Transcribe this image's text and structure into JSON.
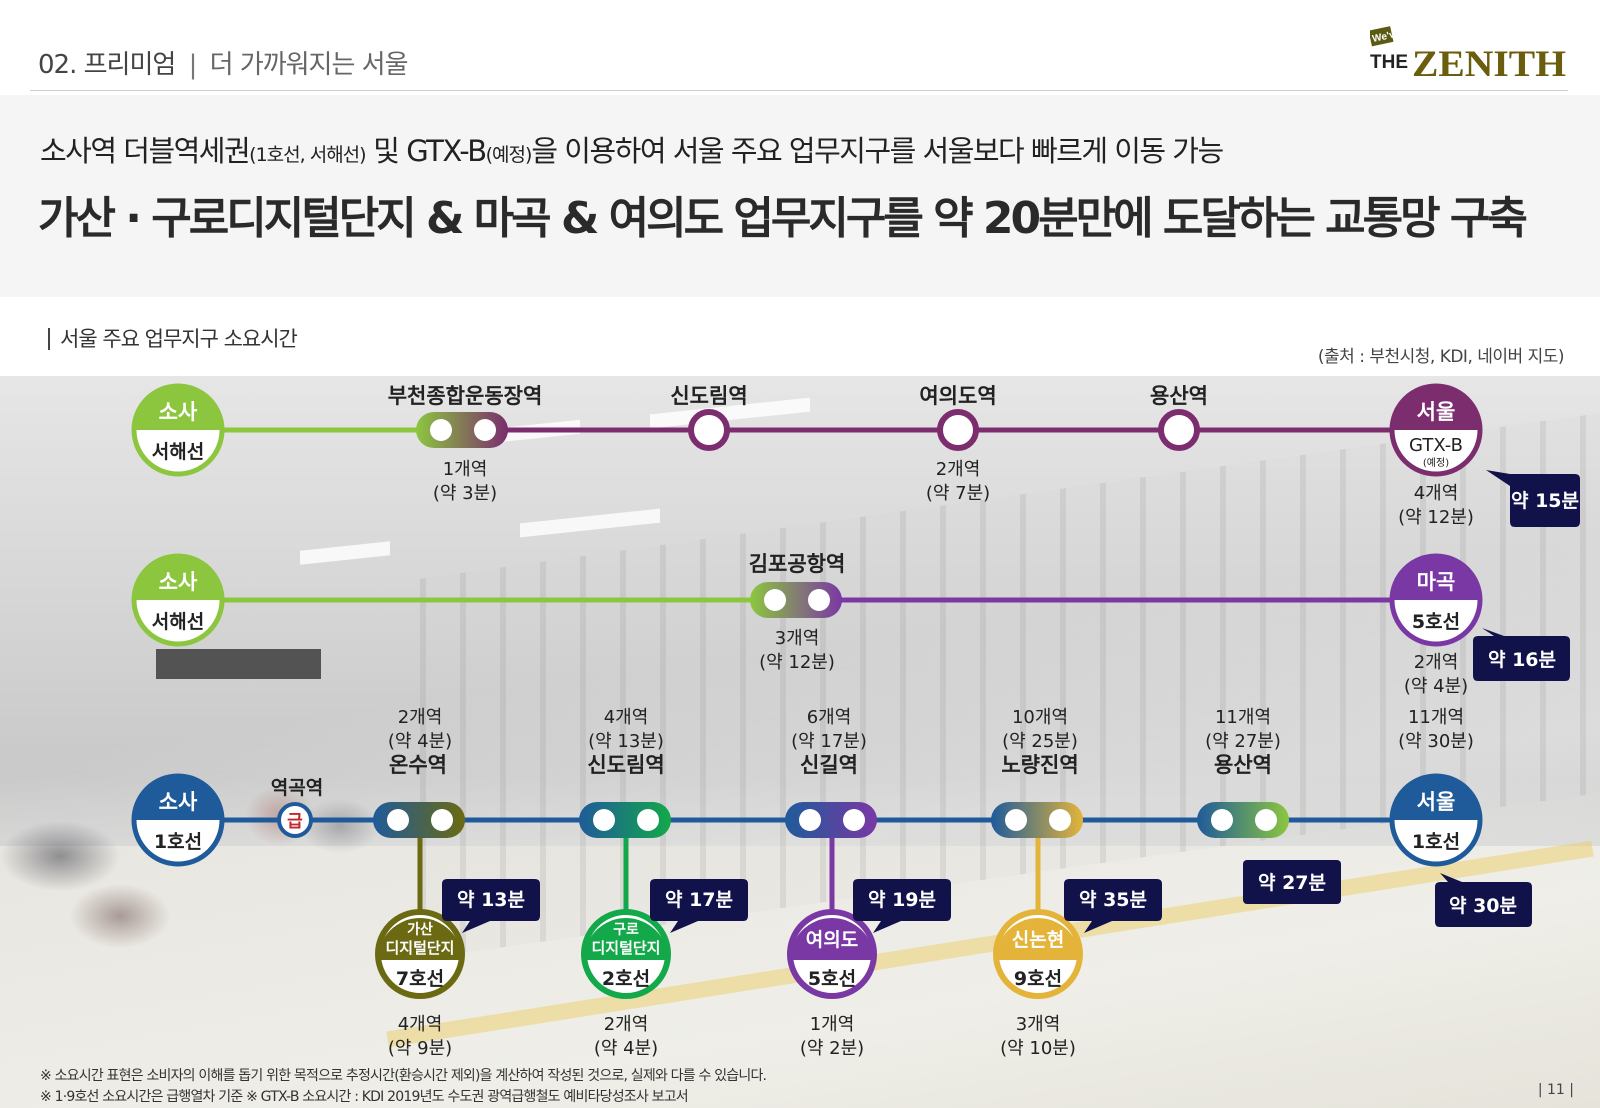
{
  "header": {
    "section_label": "02. 프리미엄",
    "separator": "|",
    "subtitle": "더 가까워지는 서울",
    "logo_small": "We've",
    "logo_main_left": "THE",
    "logo_main_right": "ZENITH"
  },
  "headline": {
    "line1_a": "소사역 더블역세권",
    "line1_small1": "(1호선, 서해선)",
    "line1_b": " 및 GTX-B",
    "line1_small2": "(예정)",
    "line1_c": "을 이용하여 서울 주요 업무지구를 서울보다 빠르게 이동 가능",
    "line2": "가산 · 구로디지털단지 & 마곡 & 여의도 업무지구를 약 20분만에 도달하는 교통망 구축"
  },
  "section_title": "서울 주요 업무지구 소요시간",
  "source": "(출처 : 부천시청, KDI, 네이버 지도)",
  "colors": {
    "seohae": "#8cc63f",
    "gtx": "#7b2d6e",
    "line5": "#7a38a4",
    "line1": "#1f5b9a",
    "line7": "#6b6a12",
    "line2": "#13a84a",
    "line9": "#e4b43a",
    "badge": "#12124a"
  },
  "route_gtx": {
    "origin_name": "소사",
    "origin_line": "서해선",
    "stations": [
      "부천종합운동장역",
      "신도림역",
      "여의도역",
      "용산역"
    ],
    "seg_labels": [
      {
        "count": "1개역",
        "time": "(약 3분)"
      },
      {
        "count": "2개역",
        "time": "(약 7분)"
      }
    ],
    "dest_name": "서울",
    "dest_line": "GTX-B",
    "dest_note": "(예정)",
    "dest_count": "4개역",
    "dest_time": "(약 12분)",
    "badge": "약 15분"
  },
  "route_5": {
    "origin_name": "소사",
    "origin_line": "서해선",
    "transfer": "김포공항역",
    "seg_count": "3개역",
    "seg_time": "(약 12분)",
    "dest_name": "마곡",
    "dest_line": "5호선",
    "dest_count": "2개역",
    "dest_time": "(약 4분)",
    "badge": "약 16분"
  },
  "route_1": {
    "origin_name": "소사",
    "origin_line": "1호선",
    "express_station": "역곡역",
    "express_mark": "급",
    "transfers": [
      {
        "name": "온수역",
        "count": "2개역",
        "time": "(약 4분)"
      },
      {
        "name": "신도림역",
        "count": "4개역",
        "time": "(약 13분)"
      },
      {
        "name": "신길역",
        "count": "6개역",
        "time": "(약 17분)"
      },
      {
        "name": "노량진역",
        "count": "10개역",
        "time": "(약 25분)"
      },
      {
        "name": "용산역",
        "count": "11개역",
        "time": "(약 27분)"
      }
    ],
    "dest_name": "서울",
    "dest_line": "1호선",
    "dest_count": "11개역",
    "dest_time": "(약 30분)",
    "dest_badge": "약 30분",
    "yongsan_badge": "약 27분",
    "branches": [
      {
        "name1": "가산",
        "name2": "디지털단지",
        "line": "7호선",
        "count": "4개역",
        "time": "(약 9분)",
        "badge": "약 13분"
      },
      {
        "name1": "구로",
        "name2": "디지털단지",
        "line": "2호선",
        "count": "2개역",
        "time": "(약 4분)",
        "badge": "약 17분"
      },
      {
        "name1": "여의도",
        "name2": "",
        "line": "5호선",
        "count": "1개역",
        "time": "(약 2분)",
        "badge": "약 19분"
      },
      {
        "name1": "신논현",
        "name2": "",
        "line": "9호선",
        "count": "3개역",
        "time": "(약 10분)",
        "badge": "약 35분"
      }
    ]
  },
  "footnotes": [
    "※ 소요시간 표현은 소비자의 이해를 돕기 위한 목적으로 추정시간(환승시간 제외)을 계산하여 작성된 것으로, 실제와 다를 수 있습니다.",
    "※ 1·9호선 소요시간은 급행열차 기준 ※ GTX-B 소요시간 : KDI 2019년도 수도권 광역급행철도 예비타당성조사 보고서"
  ],
  "page_number": "| 11 |"
}
